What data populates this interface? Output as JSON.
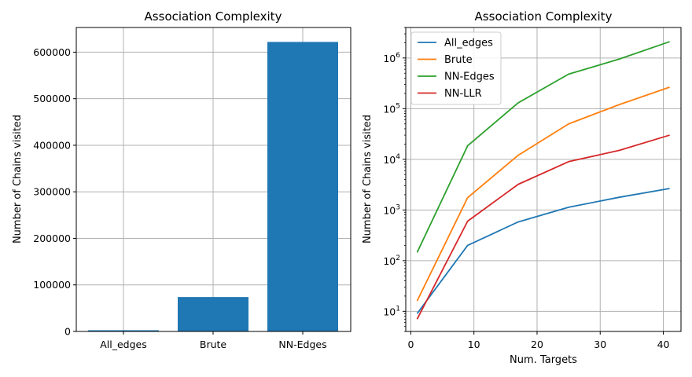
{
  "chart_data": [
    {
      "type": "bar",
      "title": "Association Complexity",
      "xlabel": "",
      "ylabel": "Number of Chains visited",
      "categories": [
        "All_edges",
        "Brute",
        "NN-Edges"
      ],
      "values": [
        2600,
        74000,
        622000
      ],
      "ylim": [
        0,
        653000
      ],
      "yticks": [
        0,
        100000,
        200000,
        300000,
        400000,
        500000,
        600000
      ],
      "ytick_labels": [
        "0",
        "100000",
        "200000",
        "300000",
        "400000",
        "500000",
        "600000"
      ],
      "bar_color": "#1f77b4",
      "grid": true
    },
    {
      "type": "line",
      "title": "Association Complexity",
      "xlabel": "Num. Targets",
      "ylabel": "Number of Chains visited",
      "yscale": "log",
      "xlim": [
        -0.8,
        42.8
      ],
      "ylim": [
        4,
        4000000
      ],
      "xticks": [
        0,
        10,
        20,
        30,
        40
      ],
      "xtick_labels": [
        "0",
        "10",
        "20",
        "30",
        "40"
      ],
      "ytick_exponents": [
        "1",
        "2",
        "3",
        "4",
        "5",
        "6"
      ],
      "ytick_base": "10",
      "grid": true,
      "legend_position": "top-left",
      "x": [
        1,
        9,
        17,
        25,
        33,
        41
      ],
      "series": [
        {
          "name": "All_edges",
          "color": "#1f77b4",
          "values": [
            9,
            200,
            580,
            1130,
            1780,
            2650
          ]
        },
        {
          "name": "Brute",
          "color": "#ff7f0e",
          "values": [
            16,
            1750,
            12000,
            50000,
            120000,
            265000
          ]
        },
        {
          "name": "NN-Edges",
          "color": "#2ca02c",
          "values": [
            145,
            18500,
            130000,
            480000,
            950000,
            2100000
          ]
        },
        {
          "name": "NN-LLR",
          "color": "#d62728",
          "values": [
            7,
            600,
            3200,
            9000,
            15000,
            30000
          ]
        }
      ]
    }
  ]
}
